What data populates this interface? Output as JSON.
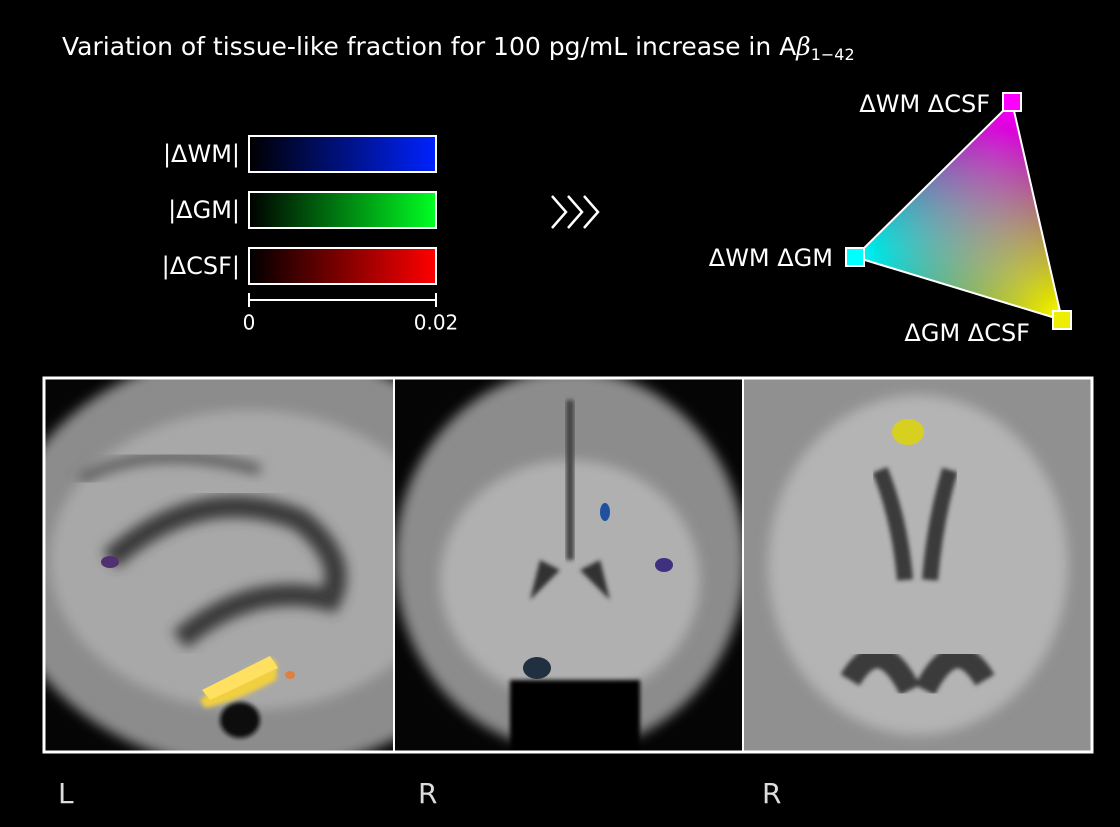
{
  "title": {
    "text": "Variation of tissue-like fraction for 100 pg/mL increase in A",
    "symbol": "β",
    "subscript": "1−42"
  },
  "colorbars": [
    {
      "label": "|ΔWM|"
    },
    {
      "label": "|ΔGM|"
    },
    {
      "label": "|ΔCSF|"
    }
  ],
  "scale": {
    "ticks": [
      0,
      0.02
    ]
  },
  "triangle": {
    "top": "ΔWM ΔCSF",
    "left": "ΔWM ΔGM",
    "bottom": "ΔGM ΔCSF"
  },
  "panels": [
    {
      "side": "L"
    },
    {
      "side": "R"
    },
    {
      "side": "R"
    }
  ]
}
